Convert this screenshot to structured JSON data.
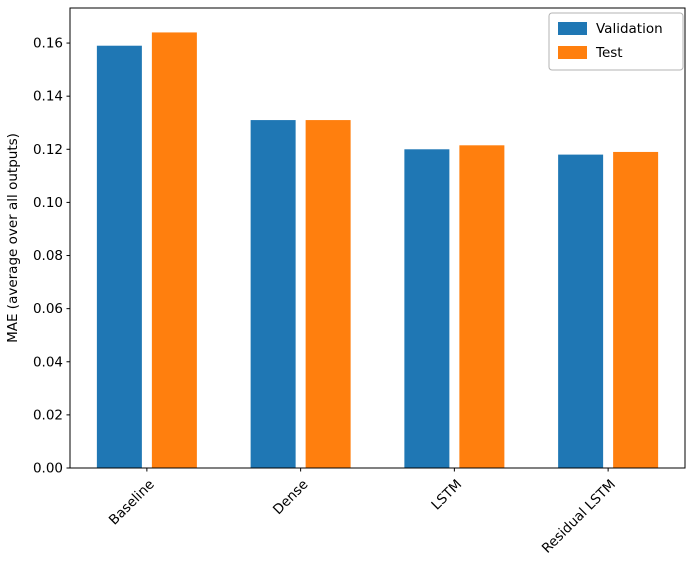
{
  "chart_data": {
    "type": "bar",
    "categories": [
      "Baseline",
      "Dense",
      "LSTM",
      "Residual LSTM"
    ],
    "series": [
      {
        "name": "Validation",
        "color": "#1f77b4",
        "values": [
          0.159,
          0.131,
          0.12,
          0.118
        ]
      },
      {
        "name": "Test",
        "color": "#ff7f0e",
        "values": [
          0.164,
          0.131,
          0.1215,
          0.119
        ]
      }
    ],
    "title": "",
    "xlabel": "",
    "ylabel": "MAE (average over all outputs)",
    "ylim": [
      0,
      0.1732
    ],
    "yticks": [
      0.0,
      0.02,
      0.04,
      0.06,
      0.08,
      0.1,
      0.12,
      0.14,
      0.16
    ],
    "y_tick_format_decimals": 2,
    "x_tick_rotation": 45,
    "grid": false,
    "legend_position": "upper right",
    "legend_entries": [
      "Validation",
      "Test"
    ],
    "colors": {
      "validation": "#1f77b4",
      "test": "#ff7f0e",
      "axes": "#000000",
      "legend_border": "#b3b3b3",
      "background": "#ffffff"
    }
  }
}
